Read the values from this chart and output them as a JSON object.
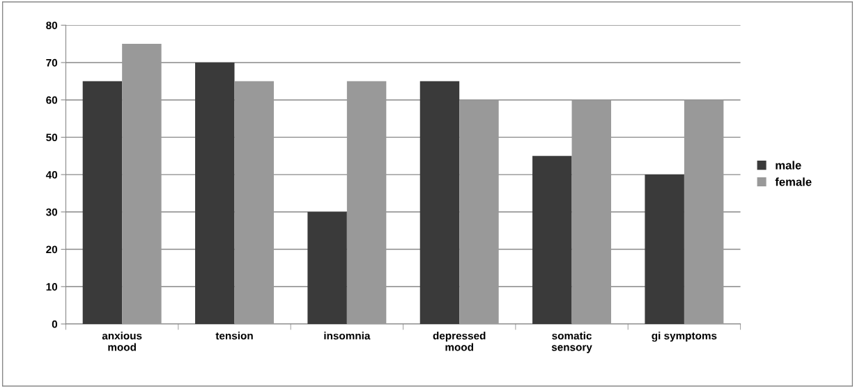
{
  "chart_data": {
    "type": "bar",
    "categories": [
      "anxious\nmood",
      "tension",
      "insomnia",
      "depressed\nmood",
      "somatic\nsensory",
      "gi symptoms"
    ],
    "series": [
      {
        "name": "male",
        "color": "#3a3a3a",
        "values": [
          65,
          70,
          30,
          65,
          45,
          40
        ]
      },
      {
        "name": "female",
        "color": "#999999",
        "values": [
          75,
          65,
          65,
          60,
          60,
          60
        ]
      }
    ],
    "ylim": [
      0,
      80
    ],
    "yticks": [
      0,
      10,
      20,
      30,
      40,
      50,
      60,
      70,
      80
    ],
    "grid": "y",
    "legend": "right"
  }
}
